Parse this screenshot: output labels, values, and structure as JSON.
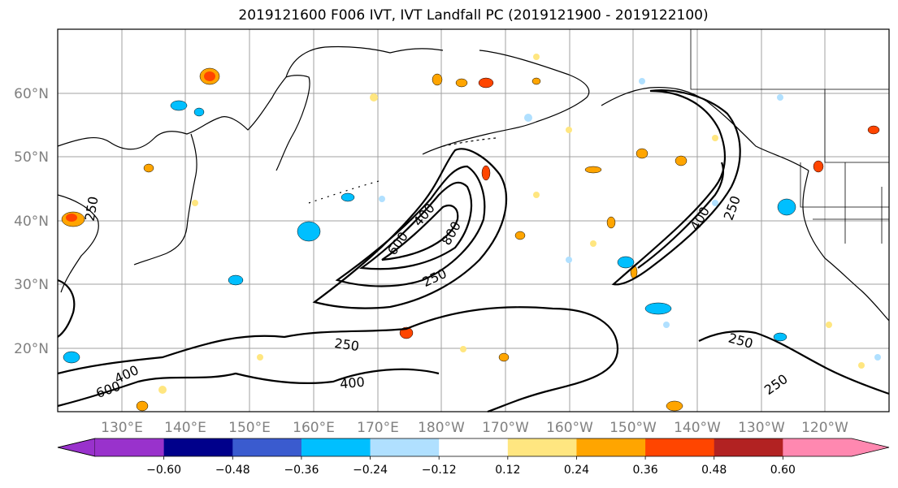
{
  "title": "2019121600 F006 IVT, IVT Landfall PC (2019121900 - 2019122100)",
  "map": {
    "lat_labels": [
      "60°N",
      "50°N",
      "40°N",
      "30°N",
      "20°N"
    ],
    "lon_labels": [
      "130°E",
      "140°E",
      "150°E",
      "160°E",
      "170°E",
      "180°W",
      "170°W",
      "160°W",
      "150°W",
      "140°W",
      "130°W",
      "120°W"
    ],
    "contour_labels": [
      "250",
      "400",
      "600",
      "800",
      "250",
      "400",
      "250",
      "250",
      "400",
      "600",
      "400",
      "250",
      "250"
    ]
  },
  "colorbar": {
    "ticks": [
      "−0.60",
      "−0.48",
      "−0.36",
      "−0.24",
      "−0.12",
      "0.12",
      "0.24",
      "0.36",
      "0.48",
      "0.60"
    ],
    "colors": [
      "#9932cc",
      "#00008b",
      "#3a5bcf",
      "#00bfff",
      "#b0e0ff",
      "#ffffff",
      "#ffe680",
      "#ffa500",
      "#ff4500",
      "#b22222",
      "#ff88b0"
    ]
  }
}
